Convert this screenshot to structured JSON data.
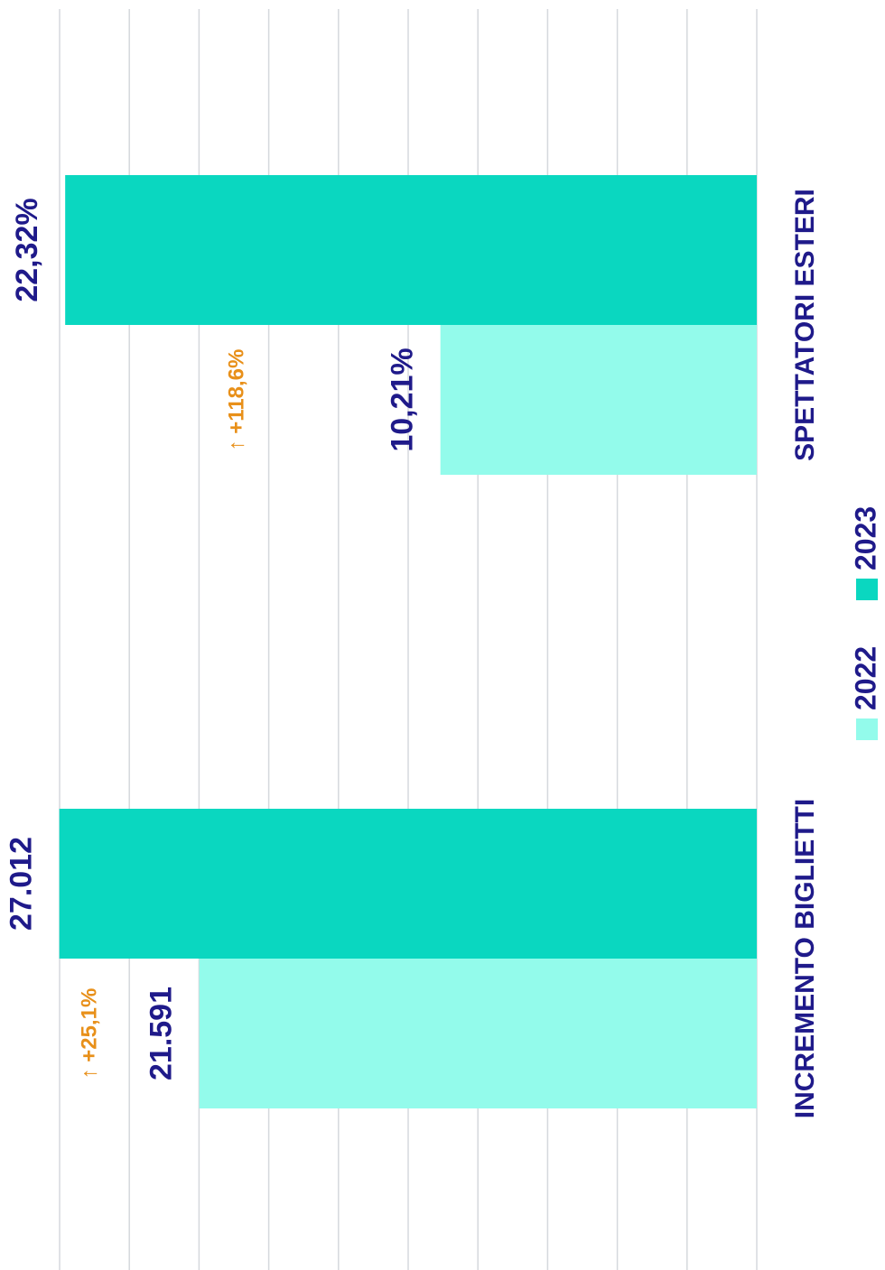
{
  "chart_data": [
    {
      "type": "bar",
      "categories": [
        "INCREMENTO BIGLIETTI"
      ],
      "series": [
        {
          "name": "2022",
          "color": "#93fbeb",
          "values": [
            21591
          ],
          "value_labels": [
            "21.591"
          ]
        },
        {
          "name": "2023",
          "color": "#0ad7c0",
          "values": [
            27012
          ],
          "value_labels": [
            "27.012"
          ]
        }
      ],
      "annotation": "↑ +25,1%",
      "ylim": [
        0,
        27000
      ],
      "yticks": [
        0,
        2700,
        5400,
        8100,
        10800,
        13500,
        16200,
        18900,
        21600,
        24300,
        27000
      ],
      "grid": true
    },
    {
      "type": "bar",
      "categories": [
        "SPETTATORI ESTERI"
      ],
      "series": [
        {
          "name": "2022",
          "color": "#93fbeb",
          "values": [
            10.21
          ],
          "value_labels": [
            "10,21%"
          ]
        },
        {
          "name": "2023",
          "color": "#0ad7c0",
          "values": [
            22.32
          ],
          "value_labels": [
            "22,32%"
          ]
        }
      ],
      "annotation": "↑ +118,6%",
      "ylim": [
        0,
        22.5
      ],
      "yticks": [
        0,
        2.25,
        4.5,
        6.75,
        9,
        11.25,
        13.5,
        15.75,
        18,
        20.25,
        22.5
      ],
      "grid": true
    }
  ]
}
